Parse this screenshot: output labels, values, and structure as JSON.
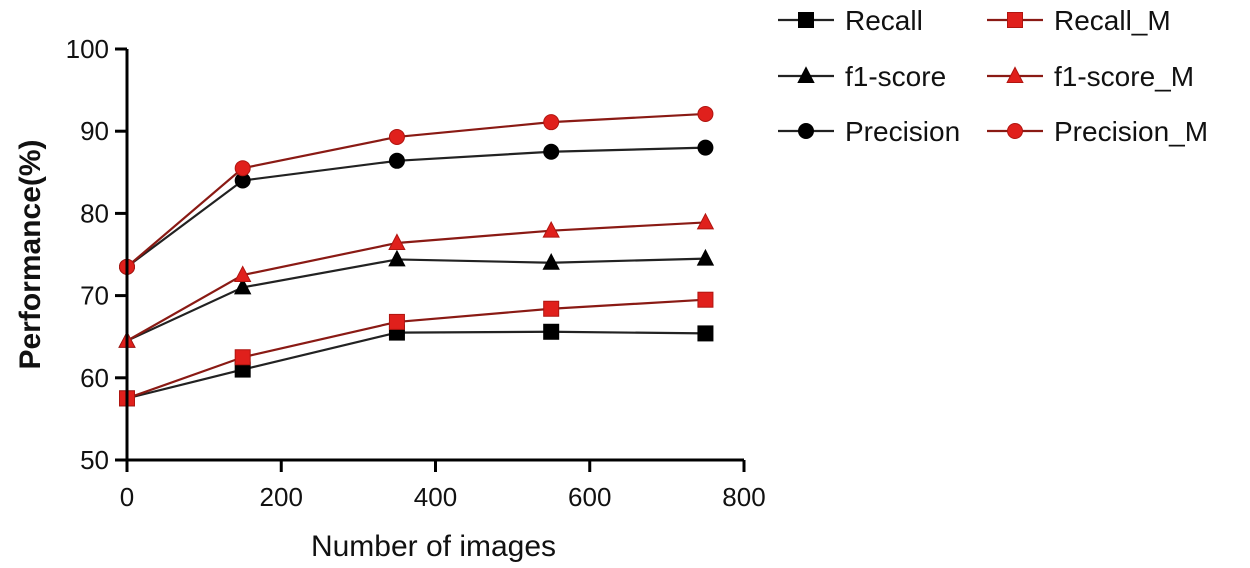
{
  "chart_data": {
    "type": "line",
    "title": "",
    "xlabel": "Number of images",
    "ylabel": "Performance(%)",
    "xlim": [
      0,
      800
    ],
    "ylim": [
      50,
      100
    ],
    "xticks": [
      0,
      200,
      400,
      600,
      800
    ],
    "yticks": [
      50,
      60,
      70,
      80,
      90,
      100
    ],
    "grid": false,
    "legend_position": "top-right",
    "x": [
      0,
      150,
      350,
      550,
      750
    ],
    "series": [
      {
        "name": "Recall",
        "marker": "square",
        "color": "#000000",
        "values": [
          57.5,
          61.0,
          65.5,
          65.6,
          65.4
        ]
      },
      {
        "name": "f1-score",
        "marker": "triangle",
        "color": "#000000",
        "values": [
          64.5,
          71.0,
          74.4,
          74.0,
          74.5
        ]
      },
      {
        "name": "Precision",
        "marker": "circle",
        "color": "#000000",
        "values": [
          73.5,
          84.0,
          86.4,
          87.5,
          88.0
        ]
      },
      {
        "name": "Recall_M",
        "marker": "square",
        "color": "#e0201c",
        "values": [
          57.5,
          62.5,
          66.8,
          68.4,
          69.5
        ]
      },
      {
        "name": "f1-score_M",
        "marker": "triangle",
        "color": "#e0201c",
        "values": [
          64.5,
          72.5,
          76.4,
          77.9,
          78.9
        ]
      },
      {
        "name": "Precision_M",
        "marker": "circle",
        "color": "#e0201c",
        "values": [
          73.5,
          85.5,
          89.3,
          91.1,
          92.1
        ]
      }
    ]
  }
}
